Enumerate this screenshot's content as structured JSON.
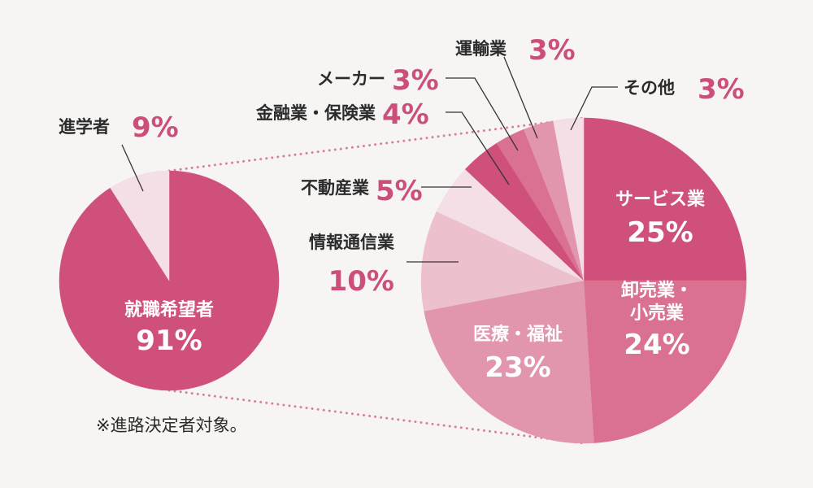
{
  "colors": {
    "background": "#f7f5f3",
    "accent_text": "#cc4f7b",
    "dark_text": "#2b2b2b"
  },
  "footnote": "※進路決定者対象。",
  "chart_data": [
    {
      "type": "pie",
      "slices": [
        {
          "label": "就職希望者",
          "pct_label": "91%",
          "value": 91,
          "color": "#d0507c",
          "label_inside": true
        },
        {
          "label": "進学者",
          "pct_label": "9%",
          "value": 9,
          "color": "#f3dfe5",
          "label_inside": false
        }
      ]
    },
    {
      "type": "pie",
      "slices": [
        {
          "label": "サービス業",
          "pct_label": "25%",
          "value": 25,
          "color": "#d0507c",
          "label_inside": true
        },
        {
          "label": "卸売業・小売業",
          "label_lines": [
            "卸売業・",
            "小売業"
          ],
          "pct_label": "24%",
          "value": 24,
          "color": "#db7191",
          "label_inside": true
        },
        {
          "label": "医療・福祉",
          "pct_label": "23%",
          "value": 23,
          "color": "#e196ae",
          "label_inside": true
        },
        {
          "label": "情報通信業",
          "pct_label": "10%",
          "value": 10,
          "color": "#ecc0cd",
          "label_inside": false
        },
        {
          "label": "不動産業",
          "pct_label": "5%",
          "value": 5,
          "color": "#f3dfe5",
          "label_inside": false
        },
        {
          "label": "金融業・保険業",
          "pct_label": "4%",
          "value": 4,
          "color": "#d0507c",
          "label_inside": false
        },
        {
          "label": "メーカー",
          "pct_label": "3%",
          "value": 3,
          "color": "#db7191",
          "label_inside": false
        },
        {
          "label": "運輸業",
          "pct_label": "3%",
          "value": 3,
          "color": "#e196ae",
          "label_inside": false
        },
        {
          "label": "その他",
          "pct_label": "3%",
          "value": 3,
          "color": "#f3dfe5",
          "label_inside": false
        }
      ]
    }
  ]
}
